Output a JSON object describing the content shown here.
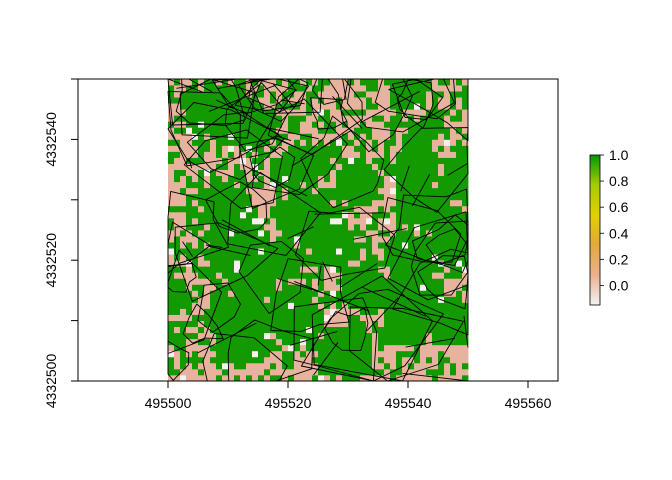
{
  "chart_data": {
    "type": "heatmap",
    "title": "",
    "xlabel": "",
    "ylabel": "",
    "xlim": [
      495485,
      495565
    ],
    "ylim": [
      4332500,
      4332550
    ],
    "x_ticks": [
      "495500",
      "495520",
      "495540",
      "495560"
    ],
    "y_ticks": [
      "4332500",
      "4332520",
      "4332540"
    ],
    "y_minor_ticks": [
      4332510,
      4332530,
      4332550
    ],
    "raster": {
      "x_range": [
        495500,
        495550
      ],
      "y_range": [
        4332500,
        4332550
      ],
      "cell_size": 1,
      "dominant_values": [
        0.0,
        1.0
      ],
      "overlay": "black polygon outlines"
    },
    "legend": {
      "placement": "right",
      "range": [
        -0.15,
        1.0
      ],
      "ticks": [
        "0.0",
        "0.2",
        "0.4",
        "0.6",
        "0.8",
        "1.0"
      ],
      "colormap": [
        "#f2f2f2",
        "#ebb18f",
        "#e2a93b",
        "#e3d000",
        "#a6cc00",
        "#009a00"
      ]
    }
  }
}
